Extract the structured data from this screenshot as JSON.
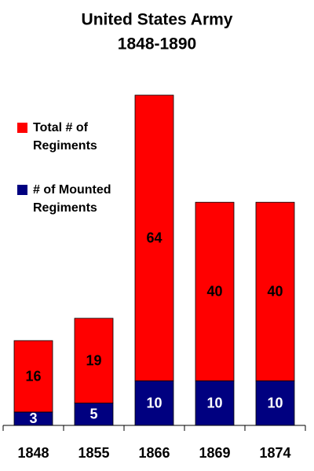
{
  "chart_data": {
    "type": "stacked-bar",
    "title": "United States Army",
    "subtitle": "1848-1890",
    "categories": [
      "1848",
      "1855",
      "1866",
      "1869",
      "1874"
    ],
    "series": [
      {
        "name": "# of Mounted Regiments",
        "color": "#000080",
        "values": [
          3,
          5,
          10,
          10,
          10
        ]
      },
      {
        "name": "Total # of Regiments",
        "color": "#ff0000",
        "values": [
          16,
          19,
          64,
          40,
          40
        ]
      }
    ]
  }
}
